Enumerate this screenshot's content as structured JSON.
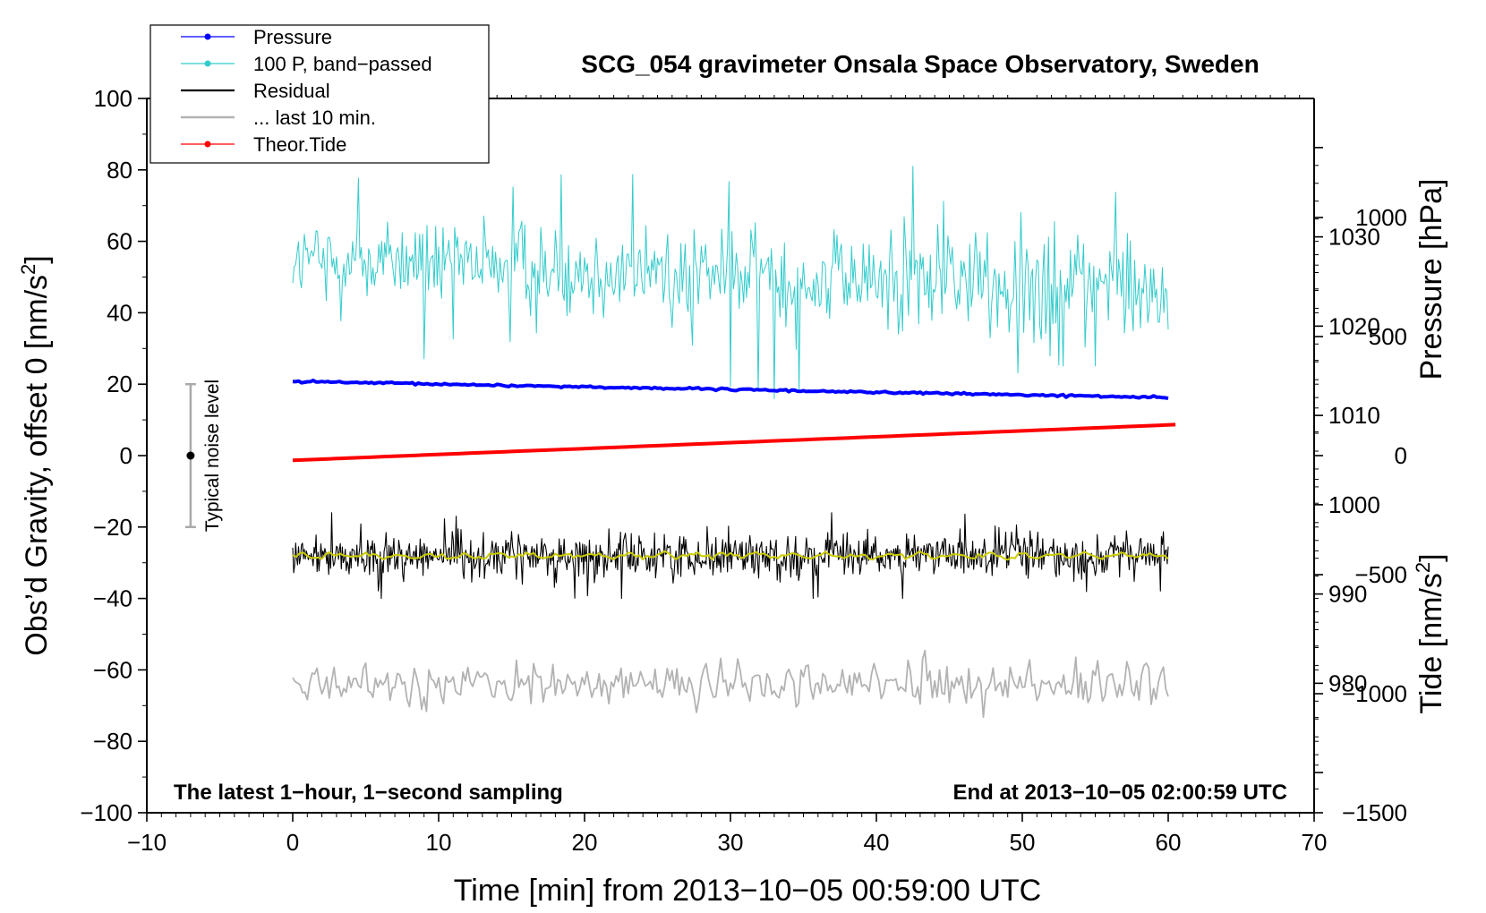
{
  "chart_data": {
    "type": "line",
    "title": "SCG_054 gravimeter Onsala Space Observatory, Sweden",
    "xlabel": "Time [min] from 2013−10−05 00:59:00 UTC",
    "ylabel_left_main": "Obs’d Gravity, offset 0 [nm/s",
    "ylabel_left_sup": "2",
    "ylabel_left_end": "]",
    "ylabel_right_pressure": "Pressure [hPa]",
    "ylabel_right_tide_main": "Tide [nm/s",
    "ylabel_right_tide_sup": "2",
    "ylabel_right_tide_end": "]",
    "xlim": [
      -10,
      70
    ],
    "ylim": [
      -100,
      100
    ],
    "pressure_axis_range": [
      965.5,
      1045.5
    ],
    "tide_axis_range": [
      -1500,
      1500
    ],
    "x_ticks": [
      -10,
      0,
      10,
      20,
      30,
      40,
      50,
      60,
      70
    ],
    "y_ticks": [
      -100,
      -80,
      -60,
      -40,
      -20,
      0,
      20,
      40,
      60,
      80,
      100
    ],
    "pressure_ticks": [
      980,
      990,
      1000,
      1010,
      1020,
      1030
    ],
    "tide_ticks": [
      -1500,
      -1000,
      -500,
      0,
      500,
      1000
    ],
    "x_tick_labels": [
      "−10",
      "0",
      "10",
      "20",
      "30",
      "40",
      "50",
      "60",
      "70"
    ],
    "y_tick_labels": [
      "−100",
      "−80",
      "−60",
      "−40",
      "−20",
      "0",
      "20",
      "40",
      "60",
      "80",
      "100"
    ],
    "pressure_tick_labels": [
      "980",
      "990",
      "1000",
      "1010",
      "1020",
      "1030"
    ],
    "tide_tick_labels": [
      "−1500",
      "−1000",
      "−500",
      "0",
      "500",
      "1000"
    ],
    "legend": [
      {
        "name": "Pressure",
        "color": "#0000ff",
        "marker": true
      },
      {
        "name": "100 P, band−passed",
        "color": "#33cccc",
        "marker": true
      },
      {
        "name": "Residual",
        "color": "#000000",
        "marker": false
      },
      {
        "name": "... last 10 min.",
        "color": "#b3b3b3",
        "marker": false
      },
      {
        "name": "Theor.Tide",
        "color": "#ff0000",
        "marker": true
      }
    ],
    "legend_placement": "top-left",
    "annotation_left": "The latest 1−hour, 1−second sampling",
    "annotation_right": "End at 2013−10−05 02:00:59 UTC",
    "noise_label": "Typical noise level",
    "noise_bar": {
      "x": -7,
      "center": 0,
      "half_range": 20
    },
    "series": [
      {
        "name": "Pressure",
        "unit": "hPa",
        "x_range": [
          0,
          60
        ],
        "start": 1013.8,
        "end": 1012.0,
        "color": "#0000ff"
      },
      {
        "name": "100 P, band−passed",
        "unit": "nm/s2",
        "x_range": [
          0,
          60
        ],
        "approx_level": 52,
        "min": 10,
        "max": 81,
        "color": "#33cccc"
      },
      {
        "name": "Residual",
        "unit": "nm/s2",
        "x_range": [
          0,
          60
        ],
        "approx_level": -28,
        "min": -40,
        "max": -16,
        "color": "#000000"
      },
      {
        "name": "Residual smoothed",
        "unit": "nm/s2",
        "x_range": [
          0,
          60
        ],
        "approx_level": -28,
        "color": "#cccc00"
      },
      {
        "name": "... last 10 min.",
        "unit": "nm/s2",
        "x_range": [
          0,
          60
        ],
        "approx_level": -64,
        "min": -74,
        "max": -54,
        "color": "#b3b3b3"
      },
      {
        "name": "Theor.Tide",
        "unit": "nm/s2",
        "x_range": [
          0,
          60.5
        ],
        "start": -20,
        "end": 130,
        "color": "#ff0000"
      }
    ]
  }
}
